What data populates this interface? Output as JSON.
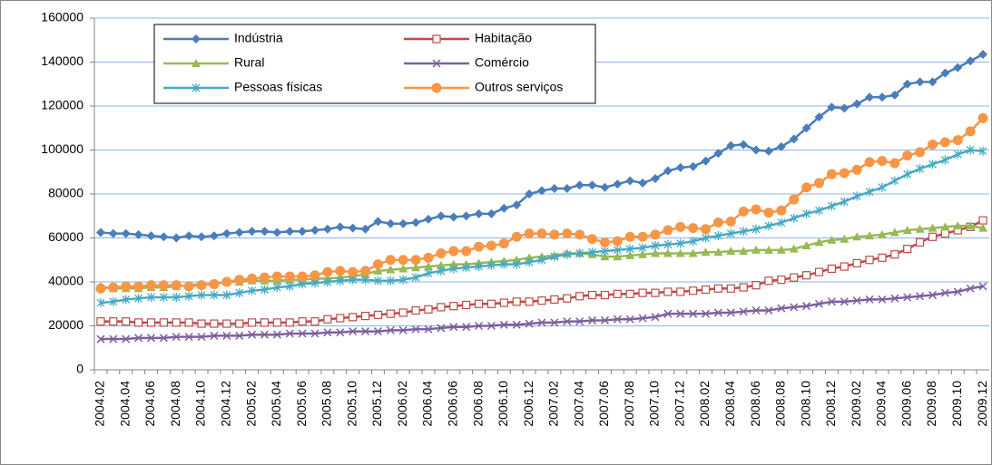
{
  "chart_data": {
    "type": "line",
    "categories": [
      "2004.02",
      null,
      "2004.04",
      null,
      "2004.06",
      null,
      "2004.08",
      null,
      "2004.10",
      null,
      "2004.12",
      null,
      "2005.02",
      null,
      "2005.04",
      null,
      "2005.06",
      null,
      "2005.08",
      null,
      "2005.10",
      null,
      "2005.12",
      null,
      "2006.02",
      null,
      "2006.04",
      null,
      "2006.06",
      null,
      "2006.08",
      null,
      "2006.10",
      null,
      "2006.12",
      null,
      "2007.02",
      null,
      "2007.04",
      null,
      "2007.06",
      null,
      "2007.08",
      null,
      "2007.10",
      null,
      "2007.12",
      null,
      "2008.02",
      null,
      "2008.04",
      null,
      "2008.06",
      null,
      "2008.08",
      null,
      "2008.10",
      null,
      "2008.12",
      null,
      "2009.02",
      null,
      "2009.04",
      null,
      "2009.06",
      null,
      "2009.08",
      null,
      "2009.10",
      null,
      "2009.12"
    ],
    "ylim": [
      0,
      160000
    ],
    "yticks": [
      0,
      20000,
      40000,
      60000,
      80000,
      100000,
      120000,
      140000,
      160000
    ],
    "grid": true,
    "series": [
      {
        "name": "Indústria",
        "color": "#4a7ebb",
        "marker": "diamond",
        "values": [
          62500,
          62000,
          62000,
          61500,
          61000,
          60500,
          60000,
          61000,
          60500,
          61000,
          62000,
          62500,
          63000,
          63000,
          62500,
          63000,
          63000,
          63500,
          64000,
          65000,
          64500,
          64000,
          67500,
          66500,
          66500,
          67000,
          68500,
          70000,
          69500,
          70000,
          71000,
          71000,
          73500,
          75000,
          80000,
          81500,
          82500,
          82500,
          84000,
          84000,
          83000,
          84500,
          86000,
          85000,
          87000,
          90500,
          92000,
          92500,
          95000,
          98500,
          102000,
          102500,
          100000,
          99500,
          101500,
          105000,
          110000,
          115000,
          119500,
          119000,
          121000,
          124000,
          124000,
          125000,
          130000,
          131000,
          131000,
          135000,
          137500,
          140500,
          143500
        ]
      },
      {
        "name": "Habitação",
        "color": "#be4b48",
        "marker": "square",
        "values": [
          22000,
          22000,
          22000,
          21500,
          21500,
          21500,
          21500,
          21500,
          21000,
          21000,
          21000,
          21000,
          21500,
          21500,
          21500,
          21500,
          22000,
          22000,
          23000,
          23500,
          24000,
          24500,
          25000,
          25500,
          26000,
          27000,
          27500,
          28500,
          29000,
          29500,
          30000,
          30000,
          30500,
          31000,
          31000,
          31500,
          32000,
          32500,
          33500,
          34000,
          34000,
          34500,
          34500,
          35000,
          35000,
          35500,
          35500,
          36000,
          36500,
          37000,
          37000,
          37500,
          38500,
          40500,
          41000,
          42000,
          43000,
          44500,
          46000,
          47000,
          48500,
          50000,
          51000,
          52500,
          55000,
          58000,
          60500,
          62000,
          63500,
          65000,
          68000
        ]
      },
      {
        "name": "Rural",
        "color": "#98b954",
        "marker": "triangle",
        "values": [
          38000,
          37000,
          37000,
          37000,
          37500,
          37500,
          38000,
          38500,
          39000,
          39000,
          40000,
          40000,
          40500,
          40500,
          40500,
          41000,
          41000,
          41500,
          41500,
          42000,
          42500,
          43500,
          45000,
          45500,
          46000,
          46500,
          47000,
          47500,
          48000,
          48000,
          48500,
          49000,
          49500,
          50000,
          51000,
          51500,
          52000,
          53000,
          53000,
          52500,
          51500,
          51500,
          52000,
          52500,
          53000,
          53000,
          53000,
          53000,
          53500,
          53500,
          54000,
          54000,
          54500,
          54500,
          54500,
          55000,
          56500,
          58000,
          59000,
          59500,
          60500,
          61000,
          61500,
          62500,
          63500,
          64000,
          64500,
          65000,
          65500,
          65500,
          64500
        ]
      },
      {
        "name": "Comércio",
        "color": "#7d60a0",
        "marker": "x",
        "values": [
          14000,
          14000,
          14000,
          14500,
          14500,
          14500,
          15000,
          15000,
          15000,
          15500,
          15500,
          15500,
          16000,
          16000,
          16000,
          16500,
          16500,
          16500,
          17000,
          17000,
          17500,
          17500,
          17500,
          18000,
          18000,
          18500,
          18500,
          19000,
          19500,
          19500,
          20000,
          20000,
          20500,
          20500,
          21000,
          21500,
          21500,
          22000,
          22000,
          22500,
          22500,
          23000,
          23000,
          23500,
          24000,
          25500,
          25500,
          25500,
          25500,
          26000,
          26000,
          26500,
          27000,
          27000,
          28000,
          28500,
          29000,
          30000,
          31000,
          31000,
          31500,
          32000,
          32000,
          32500,
          33000,
          33500,
          34000,
          35000,
          35500,
          37000,
          38000
        ]
      },
      {
        "name": "Pessoas físicas",
        "color": "#46aac5",
        "marker": "star",
        "values": [
          30500,
          31000,
          32000,
          32500,
          33000,
          33000,
          33000,
          33500,
          34000,
          34000,
          34000,
          35000,
          36000,
          36500,
          37500,
          38000,
          39000,
          39500,
          40000,
          40500,
          41000,
          41000,
          40500,
          40500,
          41000,
          42000,
          44000,
          45000,
          46000,
          46500,
          47000,
          47500,
          48000,
          48000,
          49000,
          50000,
          51500,
          52500,
          53000,
          53500,
          54000,
          54500,
          55000,
          55500,
          56500,
          57000,
          57500,
          58500,
          60000,
          61000,
          62000,
          63000,
          64000,
          65500,
          67000,
          69000,
          71000,
          72500,
          74500,
          76500,
          79000,
          81000,
          83000,
          86000,
          89000,
          91500,
          93500,
          95500,
          98000,
          100000,
          99500
        ]
      },
      {
        "name": "Outros serviços",
        "color": "#f79646",
        "marker": "circle",
        "values": [
          37000,
          37500,
          38000,
          38000,
          38500,
          38500,
          38500,
          38000,
          38500,
          39000,
          40000,
          41000,
          41500,
          42000,
          42500,
          42500,
          42500,
          43000,
          44500,
          45000,
          44500,
          45000,
          48000,
          50000,
          50000,
          50000,
          51000,
          53000,
          54000,
          54000,
          56000,
          56500,
          57500,
          60500,
          62000,
          62000,
          61500,
          62000,
          61500,
          59500,
          58000,
          58500,
          60500,
          60500,
          61500,
          63500,
          65000,
          64500,
          64000,
          67000,
          67500,
          72000,
          73000,
          71500,
          72500,
          77500,
          83000,
          85000,
          89000,
          89500,
          91000,
          94500,
          95000,
          94000,
          97500,
          99000,
          102500,
          103500,
          104500,
          108500,
          114500
        ]
      }
    ]
  }
}
